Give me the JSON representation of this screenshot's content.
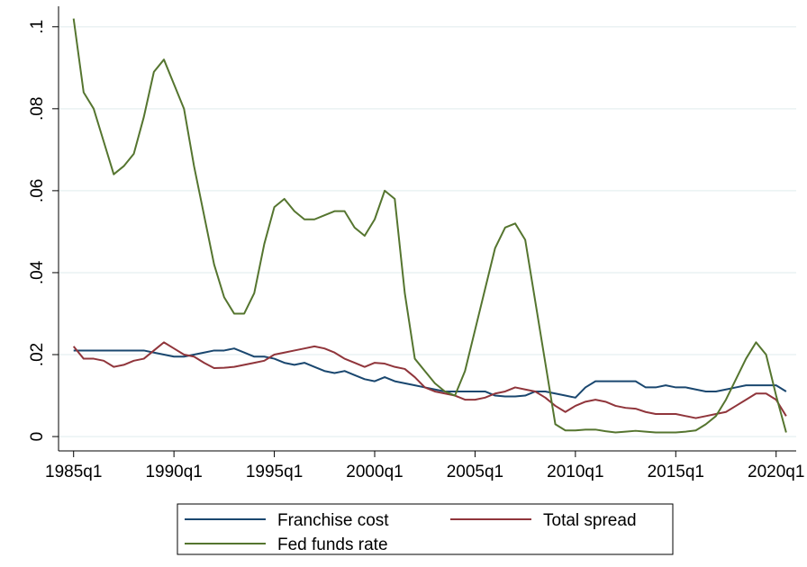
{
  "chart_data": {
    "type": "line",
    "x": [
      "1985q1",
      "1985q3",
      "1986q1",
      "1986q3",
      "1987q1",
      "1987q3",
      "1988q1",
      "1988q3",
      "1989q1",
      "1989q3",
      "1990q1",
      "1990q3",
      "1991q1",
      "1991q3",
      "1992q1",
      "1992q3",
      "1993q1",
      "1993q3",
      "1994q1",
      "1994q3",
      "1995q1",
      "1995q3",
      "1996q1",
      "1996q3",
      "1997q1",
      "1997q3",
      "1998q1",
      "1998q3",
      "1999q1",
      "1999q3",
      "2000q1",
      "2000q3",
      "2001q1",
      "2001q3",
      "2002q1",
      "2002q3",
      "2003q1",
      "2003q3",
      "2004q1",
      "2004q3",
      "2005q1",
      "2005q3",
      "2006q1",
      "2006q3",
      "2007q1",
      "2007q3",
      "2008q1",
      "2008q3",
      "2009q1",
      "2009q3",
      "2010q1",
      "2010q3",
      "2011q1",
      "2011q3",
      "2012q1",
      "2012q3",
      "2013q1",
      "2013q3",
      "2014q1",
      "2014q3",
      "2015q1",
      "2015q3",
      "2016q1",
      "2016q3",
      "2017q1",
      "2017q3",
      "2018q1",
      "2018q3",
      "2019q1",
      "2019q3",
      "2020q1",
      "2020q3"
    ],
    "series": [
      {
        "name": "Franchise cost",
        "color": "#1a476f",
        "values": [
          0.021,
          0.021,
          0.021,
          0.021,
          0.021,
          0.021,
          0.021,
          0.021,
          0.0205,
          0.02,
          0.0195,
          0.0195,
          0.02,
          0.0205,
          0.021,
          0.021,
          0.0215,
          0.0205,
          0.0195,
          0.0195,
          0.019,
          0.018,
          0.0175,
          0.018,
          0.017,
          0.016,
          0.0155,
          0.016,
          0.015,
          0.014,
          0.0135,
          0.0145,
          0.0135,
          0.013,
          0.0125,
          0.012,
          0.0115,
          0.011,
          0.011,
          0.011,
          0.011,
          0.011,
          0.01,
          0.0098,
          0.0098,
          0.01,
          0.011,
          0.011,
          0.0105,
          0.01,
          0.0095,
          0.012,
          0.0135,
          0.0135,
          0.0135,
          0.0135,
          0.0135,
          0.012,
          0.012,
          0.0125,
          0.012,
          0.012,
          0.0115,
          0.011,
          0.011,
          0.0115,
          0.012,
          0.0125,
          0.0125,
          0.0125,
          0.0125,
          0.011
        ]
      },
      {
        "name": "Total spread",
        "color": "#90353b",
        "values": [
          0.022,
          0.019,
          0.019,
          0.0185,
          0.017,
          0.0175,
          0.0185,
          0.019,
          0.021,
          0.023,
          0.0215,
          0.02,
          0.0195,
          0.018,
          0.0167,
          0.0168,
          0.017,
          0.0175,
          0.018,
          0.0185,
          0.02,
          0.0205,
          0.021,
          0.0215,
          0.022,
          0.0215,
          0.0205,
          0.019,
          0.018,
          0.017,
          0.018,
          0.0178,
          0.017,
          0.0165,
          0.0145,
          0.012,
          0.011,
          0.0105,
          0.01,
          0.009,
          0.009,
          0.0095,
          0.0105,
          0.011,
          0.012,
          0.0115,
          0.011,
          0.0095,
          0.0075,
          0.006,
          0.0075,
          0.0085,
          0.009,
          0.0085,
          0.0075,
          0.007,
          0.0068,
          0.006,
          0.0055,
          0.0055,
          0.0055,
          0.005,
          0.0045,
          0.005,
          0.0055,
          0.006,
          0.0075,
          0.009,
          0.0105,
          0.0105,
          0.009,
          0.005
        ]
      },
      {
        "name": "Fed funds rate",
        "color": "#55752f",
        "values": [
          0.102,
          0.084,
          0.08,
          0.072,
          0.064,
          0.066,
          0.069,
          0.078,
          0.089,
          0.092,
          0.086,
          0.08,
          0.066,
          0.054,
          0.042,
          0.034,
          0.03,
          0.03,
          0.035,
          0.047,
          0.056,
          0.058,
          0.055,
          0.053,
          0.053,
          0.054,
          0.055,
          0.055,
          0.051,
          0.049,
          0.053,
          0.06,
          0.058,
          0.035,
          0.019,
          0.016,
          0.013,
          0.011,
          0.01,
          0.016,
          0.026,
          0.036,
          0.046,
          0.051,
          0.052,
          0.048,
          0.033,
          0.018,
          0.003,
          0.0015,
          0.0015,
          0.0017,
          0.0017,
          0.0013,
          0.001,
          0.0012,
          0.0014,
          0.0012,
          0.001,
          0.001,
          0.001,
          0.0012,
          0.0015,
          0.003,
          0.005,
          0.009,
          0.014,
          0.019,
          0.023,
          0.02,
          0.01,
          0.001
        ]
      }
    ],
    "xlim": [
      "1984q2",
      "2021q1"
    ],
    "xticks": [
      "1985q1",
      "1990q1",
      "1995q1",
      "2000q1",
      "2005q1",
      "2010q1",
      "2015q1",
      "2020q1"
    ],
    "ylim": [
      -0.0035,
      0.105
    ],
    "yticks": [
      0,
      {
        "value": 0.02,
        "label": ".02"
      },
      {
        "value": 0.04,
        "label": ".04"
      },
      {
        "value": 0.06,
        "label": ".06"
      },
      {
        "value": 0.08,
        "label": ".08"
      },
      {
        "value": 0.1,
        "label": ".1"
      }
    ],
    "grid": true,
    "legend": "bottom"
  }
}
